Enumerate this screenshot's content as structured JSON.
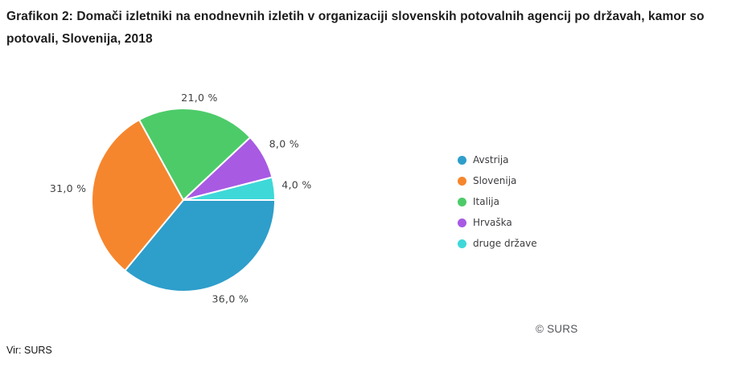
{
  "figure": {
    "title": "Grafikon 2: Domači izletniki na enodnevnih izletih v organizaciji slovenskih potovalnih agencij po državah, kamor so potovali, Slovenija, 2018",
    "source_note": "Vir: SURS",
    "watermark": "© SURS"
  },
  "chart_data": {
    "type": "pie",
    "title": "Domači izletniki na enodnevnih izletih v organizaciji slovenskih potovalnih agencij po državah, kamor so potovali, Slovenija, 2018",
    "unit": "%",
    "direction": "clockwise",
    "start_angle_deg_from_east": 0,
    "legend_position": "right",
    "slices": [
      {
        "name": "Avstrija",
        "value": 36.0,
        "label": "36,0 %",
        "color": "#2E9ECB"
      },
      {
        "name": "Slovenija",
        "value": 31.0,
        "label": "31,0 %",
        "color": "#F6862D"
      },
      {
        "name": "Italija",
        "value": 21.0,
        "label": "21,0 %",
        "color": "#4DCB69"
      },
      {
        "name": "Hrvaška",
        "value": 8.0,
        "label": "8,0 %",
        "color": "#A85AE3"
      },
      {
        "name": "druge države",
        "value": 4.0,
        "label": "4,0 %",
        "color": "#3ED8D8"
      }
    ]
  }
}
